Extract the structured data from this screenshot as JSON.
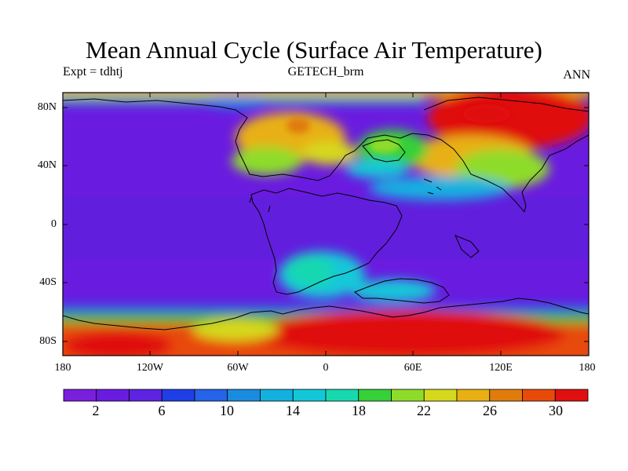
{
  "title": "Mean Annual Cycle (Surface Air Temperature)",
  "subtitle_left": "Expt = tdhtj",
  "subtitle_center": "GETECH_brm",
  "subtitle_right": "ANN",
  "lat_ticks": [
    "80N",
    "40N",
    "0",
    "40S",
    "80S"
  ],
  "lon_ticks": [
    "180",
    "120W",
    "60W",
    "0",
    "60E",
    "120E",
    "180"
  ],
  "colorbar": {
    "labels": [
      "2",
      "6",
      "10",
      "14",
      "18",
      "22",
      "26",
      "30"
    ],
    "colors": [
      "#7a1fdc",
      "#6a1be0",
      "#5d23e0",
      "#1f3fe6",
      "#2563e8",
      "#1a8ce0",
      "#14b0e0",
      "#12c8d8",
      "#18d8b0",
      "#36d038",
      "#8edc2a",
      "#d6d81e",
      "#e8b014",
      "#e07c0c",
      "#e84a0a",
      "#e01010"
    ]
  },
  "chart_data": {
    "type": "heatmap",
    "title": "Mean Annual Cycle (Surface Air Temperature)",
    "experiment": "tdhtj",
    "dataset": "GETECH_brm",
    "period": "ANN",
    "x_ticks": [
      "180",
      "120W",
      "60W",
      "0",
      "60E",
      "120E",
      "180"
    ],
    "y_ticks": [
      "80N",
      "40N",
      "0",
      "40S",
      "80S"
    ],
    "xlim": [
      -180,
      180
    ],
    "ylim": [
      -90,
      90
    ],
    "colorbar_ticks": [
      2,
      6,
      10,
      14,
      18,
      22,
      26,
      30
    ],
    "colorbar_range": [
      0,
      32
    ]
  }
}
